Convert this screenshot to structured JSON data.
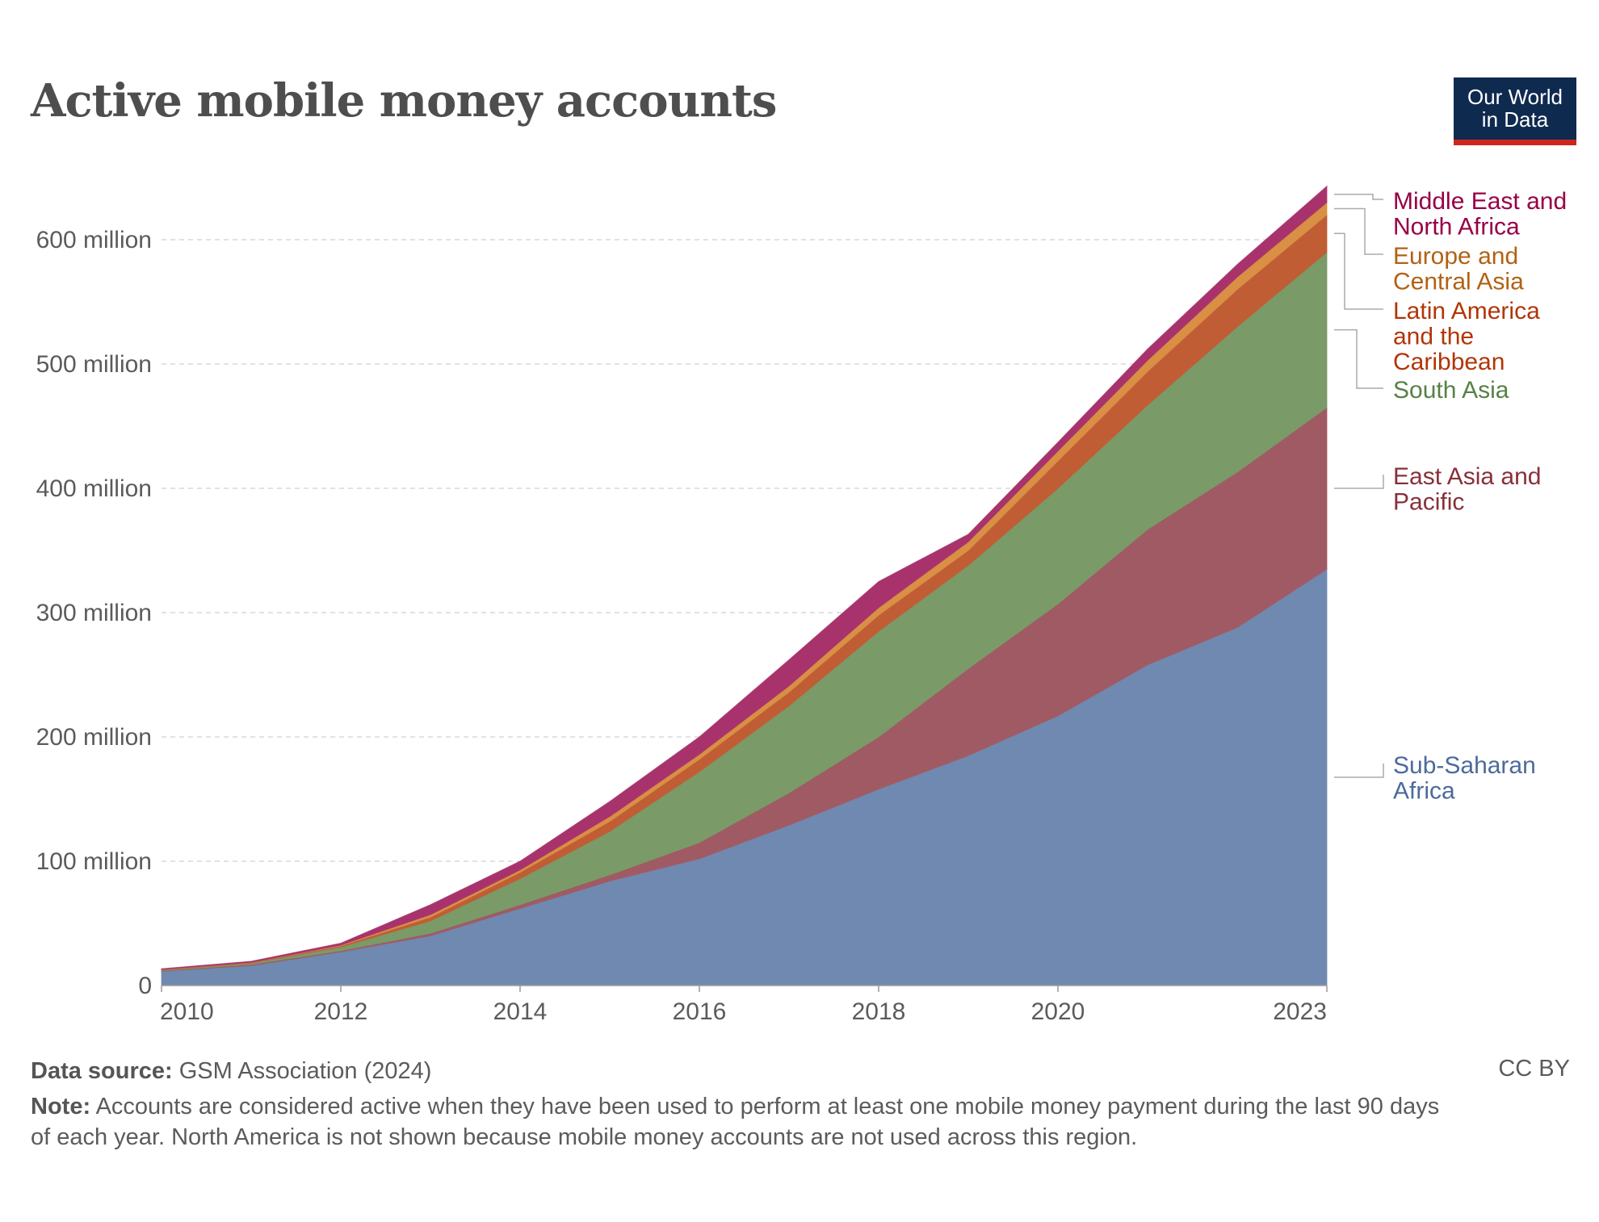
{
  "title": "Active mobile money accounts",
  "logo": {
    "line1": "Our World",
    "line2": "in Data"
  },
  "footer": {
    "source_label": "Data source:",
    "source_text": "GSM Association (2024)",
    "license": "CC BY",
    "note_label": "Note:",
    "note_line1": "Accounts are considered active when they have been used to perform at least one mobile money payment during the last 90 days",
    "note_line2": "of each year. North America is not shown because mobile money accounts are not used across this region."
  },
  "chart_data": {
    "type": "area",
    "stacked": true,
    "title": "Active mobile money accounts",
    "x": [
      2010,
      2011,
      2012,
      2013,
      2014,
      2015,
      2016,
      2017,
      2018,
      2019,
      2020,
      2021,
      2022,
      2023
    ],
    "xlim": [
      2010,
      2023
    ],
    "ylim": [
      0,
      650
    ],
    "y_unit": "million",
    "x_ticks": [
      "2010",
      "2012",
      "2014",
      "2016",
      "2018",
      "2020",
      "2023"
    ],
    "x_tick_values": [
      2010,
      2012,
      2014,
      2016,
      2018,
      2020,
      2023
    ],
    "y_ticks": [
      "0",
      "100 million",
      "200 million",
      "300 million",
      "400 million",
      "500 million",
      "600 million"
    ],
    "y_tick_values": [
      0,
      100,
      200,
      300,
      400,
      500,
      600
    ],
    "grid": "horizontal dashed",
    "legend": "right (inline labels)",
    "series": [
      {
        "name": "Sub-Saharan Africa",
        "label_lines": [
          "Sub-Saharan",
          "Africa"
        ],
        "color": "#7089b0",
        "text_color": "#4c6a9c",
        "values": [
          11.5,
          16,
          27,
          40,
          62,
          84,
          102,
          129,
          158,
          185,
          217,
          258,
          288,
          335
        ]
      },
      {
        "name": "East Asia and Pacific",
        "label_lines": [
          "East Asia and",
          "Pacific"
        ],
        "color": "#a05a64",
        "text_color": "#883039",
        "values": [
          0.5,
          1,
          1,
          2,
          3,
          5,
          13,
          26,
          42,
          70,
          90,
          109,
          125,
          130
        ]
      },
      {
        "name": "South Asia",
        "label_lines": [
          "South Asia"
        ],
        "color": "#7a9a68",
        "text_color": "#578145",
        "values": [
          0.5,
          1,
          3,
          10,
          21,
          35,
          57,
          70,
          85,
          83,
          93,
          100,
          117,
          125
        ]
      },
      {
        "name": "Latin America and the Caribbean",
        "label_lines": [
          "Latin America",
          "and the",
          "Caribbean"
        ],
        "color": "#c05d35",
        "text_color": "#b13507",
        "values": [
          0.5,
          0.5,
          1,
          3,
          5,
          8,
          10,
          11,
          13,
          12,
          22,
          27,
          30,
          30
        ]
      },
      {
        "name": "Europe and Central Asia",
        "label_lines": [
          "Europe and",
          "Central Asia"
        ],
        "color": "#d98f44",
        "text_color": "#b16214",
        "values": [
          0,
          0.2,
          0.5,
          2,
          2,
          4,
          4,
          5,
          6,
          7,
          8,
          9,
          10,
          10
        ]
      },
      {
        "name": "Middle East and North Africa",
        "label_lines": [
          "Middle East and",
          "North Africa"
        ],
        "color": "#a8336c",
        "text_color": "#970046",
        "values": [
          0.5,
          0.8,
          1.5,
          8,
          7,
          12,
          14,
          21,
          21,
          6,
          7,
          9,
          10,
          13
        ]
      }
    ]
  }
}
